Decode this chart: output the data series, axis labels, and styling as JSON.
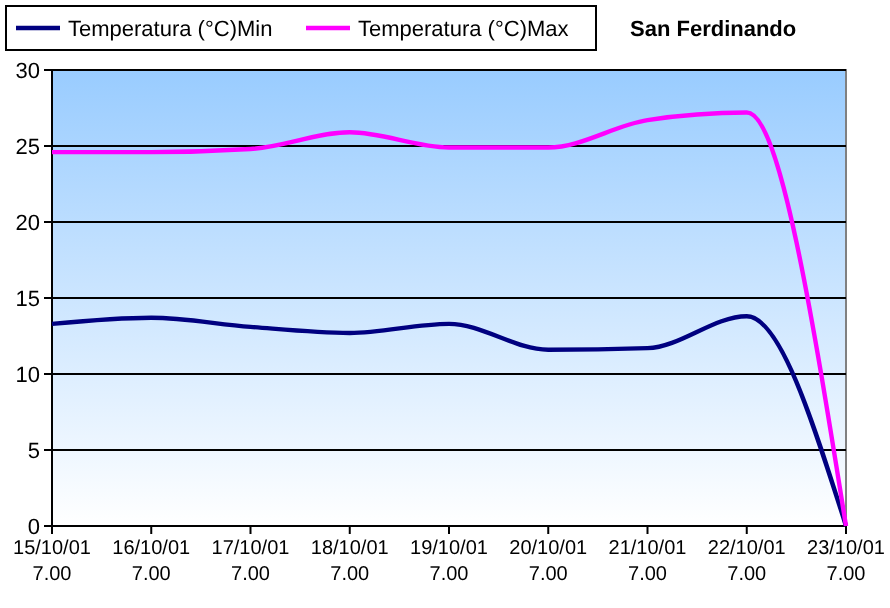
{
  "chart_data": {
    "type": "line",
    "title": "San Ferdinando",
    "categories": [
      "15/10/01 7.00",
      "16/10/01 7.00",
      "17/10/01 7.00",
      "18/10/01 7.00",
      "19/10/01 7.00",
      "20/10/01 7.00",
      "21/10/01 7.00",
      "22/10/01 7.00",
      "23/10/01 7.00"
    ],
    "series": [
      {
        "name": "Temperatura (°C)Min",
        "color": "#000080",
        "values": [
          13.3,
          13.7,
          13.1,
          12.7,
          13.3,
          11.6,
          11.7,
          13.8,
          0
        ]
      },
      {
        "name": "Temperatura (°C)Max",
        "color": "#ff00ff",
        "values": [
          24.6,
          24.6,
          24.8,
          25.9,
          24.9,
          24.9,
          26.7,
          27.2,
          0
        ]
      }
    ],
    "ylim": [
      0,
      30
    ],
    "yticks": [
      0,
      5,
      10,
      15,
      20,
      25,
      30
    ],
    "grid": "y",
    "legend": "top left",
    "marker": "none",
    "line_style": "solid"
  }
}
